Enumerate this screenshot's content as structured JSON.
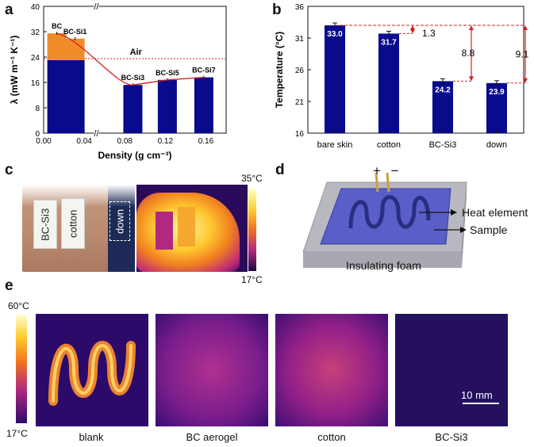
{
  "panels": {
    "a": "a",
    "b": "b",
    "c": "c",
    "d": "d",
    "e": "e"
  },
  "chart_data": [
    {
      "type": "bar",
      "panel": "a",
      "xlabel": "Density (g cm⁻³)",
      "ylabel": "λ (mW m⁻¹ K⁻¹)",
      "xlim": [
        0.0,
        0.18
      ],
      "ylim": [
        0,
        40
      ],
      "x_ticks": [
        "0.00",
        "0.04",
        "0.08",
        "0.12",
        "0.16"
      ],
      "y_ticks": [
        "0",
        "8",
        "16",
        "24",
        "32",
        "40"
      ],
      "air_line": {
        "label": "Air",
        "value": 23.5
      },
      "bars": [
        {
          "label": "BC",
          "x": 0.013,
          "total": 31.5,
          "base": 23.0
        },
        {
          "label": "BC-Si1",
          "x": 0.031,
          "total": 29.8,
          "base": 23.0
        },
        {
          "label": "BC-Si3",
          "x": 0.088,
          "total": 15.2,
          "base": 15.2
        },
        {
          "label": "BC-Si5",
          "x": 0.122,
          "total": 16.8,
          "base": 16.8
        },
        {
          "label": "BC-Si7",
          "x": 0.158,
          "total": 17.6,
          "base": 17.6
        }
      ]
    },
    {
      "type": "bar",
      "panel": "b",
      "xlabel": "",
      "ylabel": "Temperature (°C)",
      "ylim": [
        16,
        36
      ],
      "y_ticks": [
        "16",
        "21",
        "26",
        "31",
        "36"
      ],
      "categories": [
        "bare skin",
        "cotton",
        "BC-Si3",
        "down"
      ],
      "values": [
        33.0,
        31.7,
        24.2,
        23.9
      ],
      "value_labels": [
        "33.0",
        "31.7",
        "24.2",
        "23.9"
      ],
      "differences": [
        "1.3",
        "8.8",
        "9.1"
      ]
    }
  ],
  "panel_c": {
    "labels": [
      "BC-Si3",
      "cotton",
      "down"
    ],
    "scale_max": "35°C",
    "scale_min": "17°C"
  },
  "panel_d": {
    "polarity": "+ −",
    "heat_element": "Heat element",
    "sample": "Sample",
    "foam": "Insulating foam"
  },
  "panel_e": {
    "scale_max": "60°C",
    "scale_min": "17°C",
    "scale_bar": "10 mm",
    "captions": [
      "blank",
      "BC aerogel",
      "cotton",
      "BC-Si3"
    ]
  },
  "colors": {
    "bar_blue": "#0a0a8c",
    "bar_orange": "#f08c28",
    "air_red": "#d42020",
    "arrow_red": "#d42020"
  }
}
